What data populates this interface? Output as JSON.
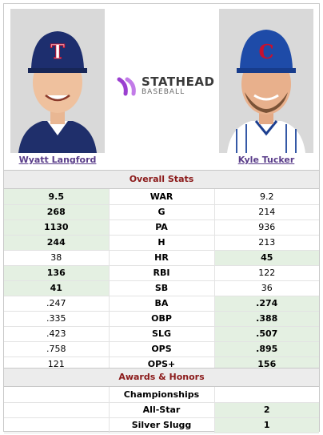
{
  "players": {
    "left": {
      "name": "Wyatt Langford",
      "team": "rangers"
    },
    "right": {
      "name": "Kyle Tucker",
      "team": "cubs"
    }
  },
  "logo": {
    "text": "STATHEAD",
    "sub": "BASEBALL"
  },
  "sections": {
    "overall": "Overall Stats",
    "awards": "Awards & Honors"
  },
  "overall_rows": [
    {
      "stat": "WAR",
      "left": "9.5",
      "right": "9.2",
      "winner": "left"
    },
    {
      "stat": "G",
      "left": "268",
      "right": "214",
      "winner": "left"
    },
    {
      "stat": "PA",
      "left": "1130",
      "right": "936",
      "winner": "left"
    },
    {
      "stat": "H",
      "left": "244",
      "right": "213",
      "winner": "left"
    },
    {
      "stat": "HR",
      "left": "38",
      "right": "45",
      "winner": "right"
    },
    {
      "stat": "RBI",
      "left": "136",
      "right": "122",
      "winner": "left"
    },
    {
      "stat": "SB",
      "left": "41",
      "right": "36",
      "winner": "left"
    },
    {
      "stat": "BA",
      "left": ".247",
      "right": ".274",
      "winner": "right"
    },
    {
      "stat": "OBP",
      "left": ".335",
      "right": ".388",
      "winner": "right"
    },
    {
      "stat": "SLG",
      "left": ".423",
      "right": ".507",
      "winner": "right"
    },
    {
      "stat": "OPS",
      "left": ".758",
      "right": ".895",
      "winner": "right"
    },
    {
      "stat": "OPS+",
      "left": "121",
      "right": "156",
      "winner": "right"
    }
  ],
  "award_rows": [
    {
      "stat": "Championships",
      "left": "",
      "right": "",
      "winner": ""
    },
    {
      "stat": "All-Star",
      "left": "",
      "right": "2",
      "winner": "right"
    },
    {
      "stat": "Silver Slugg",
      "left": "",
      "right": "1",
      "winner": "right"
    }
  ],
  "colors": {
    "win_bg": "#e4f0e2",
    "section_text": "#8b1a1a",
    "link": "#5a3d8a"
  }
}
